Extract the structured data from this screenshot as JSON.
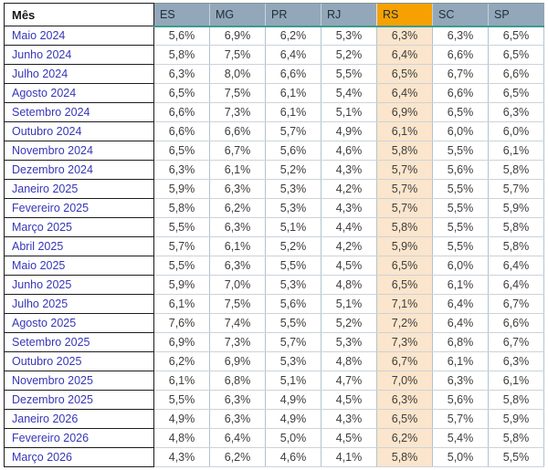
{
  "table": {
    "columns": [
      "Mês",
      "ES",
      "MG",
      "PR",
      "RJ",
      "RS",
      "SC",
      "SP"
    ],
    "highlighted_column": "RS",
    "rows": [
      {
        "month": "Maio 2024",
        "values": [
          "5,6%",
          "6,9%",
          "6,2%",
          "5,3%",
          "6,3%",
          "6,3%",
          "6,5%"
        ]
      },
      {
        "month": "Junho 2024",
        "values": [
          "5,8%",
          "7,5%",
          "6,4%",
          "5,2%",
          "6,4%",
          "6,6%",
          "6,5%"
        ]
      },
      {
        "month": "Julho 2024",
        "values": [
          "6,3%",
          "8,0%",
          "6,6%",
          "5,5%",
          "6,5%",
          "6,7%",
          "6,6%"
        ]
      },
      {
        "month": "Agosto 2024",
        "values": [
          "6,5%",
          "7,5%",
          "6,1%",
          "5,4%",
          "6,4%",
          "6,6%",
          "6,5%"
        ]
      },
      {
        "month": "Setembro 2024",
        "values": [
          "6,6%",
          "7,3%",
          "6,1%",
          "5,1%",
          "6,9%",
          "6,5%",
          "6,3%"
        ]
      },
      {
        "month": "Outubro 2024",
        "values": [
          "6,6%",
          "6,6%",
          "5,7%",
          "4,9%",
          "6,1%",
          "6,0%",
          "6,0%"
        ]
      },
      {
        "month": "Novembro 2024",
        "values": [
          "6,5%",
          "6,7%",
          "5,6%",
          "4,6%",
          "5,8%",
          "5,5%",
          "6,1%"
        ]
      },
      {
        "month": "Dezembro 2024",
        "values": [
          "6,3%",
          "6,1%",
          "5,2%",
          "4,3%",
          "5,7%",
          "5,6%",
          "5,8%"
        ]
      },
      {
        "month": "Janeiro 2025",
        "values": [
          "5,9%",
          "6,3%",
          "5,3%",
          "4,2%",
          "5,7%",
          "5,5%",
          "5,7%"
        ]
      },
      {
        "month": "Fevereiro 2025",
        "values": [
          "5,8%",
          "6,2%",
          "5,3%",
          "4,3%",
          "5,7%",
          "5,5%",
          "5,9%"
        ]
      },
      {
        "month": "Março 2025",
        "values": [
          "5,5%",
          "6,3%",
          "5,1%",
          "4,4%",
          "5,8%",
          "5,5%",
          "5,8%"
        ]
      },
      {
        "month": "Abril 2025",
        "values": [
          "5,7%",
          "6,1%",
          "5,2%",
          "4,2%",
          "5,9%",
          "5,5%",
          "5,8%"
        ]
      },
      {
        "month": "Maio 2025",
        "values": [
          "5,5%",
          "6,3%",
          "5,5%",
          "4,5%",
          "6,5%",
          "6,0%",
          "6,4%"
        ]
      },
      {
        "month": "Junho 2025",
        "values": [
          "5,9%",
          "7,0%",
          "5,3%",
          "4,8%",
          "6,5%",
          "6,1%",
          "6,4%"
        ]
      },
      {
        "month": "Julho 2025",
        "values": [
          "6,1%",
          "7,5%",
          "5,6%",
          "5,1%",
          "7,1%",
          "6,4%",
          "6,7%"
        ]
      },
      {
        "month": "Agosto 2025",
        "values": [
          "7,6%",
          "7,4%",
          "5,5%",
          "5,2%",
          "7,2%",
          "6,4%",
          "6,6%"
        ]
      },
      {
        "month": "Setembro 2025",
        "values": [
          "6,9%",
          "7,3%",
          "5,7%",
          "5,3%",
          "7,3%",
          "6,8%",
          "6,7%"
        ]
      },
      {
        "month": "Outubro 2025",
        "values": [
          "6,2%",
          "6,9%",
          "5,3%",
          "4,8%",
          "6,7%",
          "6,1%",
          "6,3%"
        ]
      },
      {
        "month": "Novembro 2025",
        "values": [
          "6,1%",
          "6,8%",
          "5,1%",
          "4,7%",
          "7,0%",
          "6,3%",
          "6,1%"
        ]
      },
      {
        "month": "Dezembro 2025",
        "values": [
          "5,5%",
          "6,3%",
          "4,9%",
          "4,5%",
          "6,3%",
          "5,6%",
          "5,8%"
        ]
      },
      {
        "month": "Janeiro 2026",
        "values": [
          "4,9%",
          "6,3%",
          "4,9%",
          "4,3%",
          "6,5%",
          "5,7%",
          "5,9%"
        ]
      },
      {
        "month": "Fevereiro 2026",
        "values": [
          "4,8%",
          "6,4%",
          "5,0%",
          "4,5%",
          "6,2%",
          "5,4%",
          "5,8%"
        ]
      },
      {
        "month": "Março 2026",
        "values": [
          "4,3%",
          "6,2%",
          "4,6%",
          "4,1%",
          "5,8%",
          "5,0%",
          "5,5%"
        ]
      }
    ]
  },
  "colors": {
    "header_bg": "#92A7B9",
    "header_text": "#212F3B",
    "highlight_header_bg": "#F6A101",
    "highlight_cell_bg": "#FBE5CC",
    "month_text": "#3636B8",
    "value_text": "#3D3D3D",
    "teal_accent": "#3D9B8E",
    "black_border": "#1C1C1C",
    "vertical_gridline": "#AFC4D3",
    "horizontal_gridline": "#CBD3DA"
  }
}
